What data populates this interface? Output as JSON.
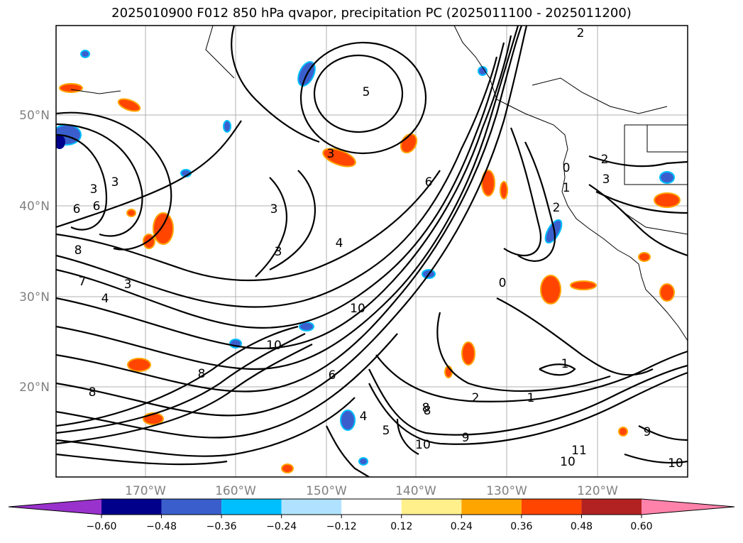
{
  "title": "2025010900 F012 850 hPa qvapor, precipitation PC (2025011100 - 2025011200)",
  "lat_labels": [
    "50°N",
    "40°N",
    "30°N",
    "20°N"
  ],
  "lon_labels": [
    "170°W",
    "160°W",
    "150°W",
    "140°W",
    "130°W",
    "120°W"
  ],
  "contour_labels": [
    "2",
    "5",
    "3",
    "3",
    "3",
    "4",
    "3",
    "3",
    "6",
    "8",
    "7",
    "4",
    "3",
    "6",
    "8",
    "10",
    "10",
    "8",
    "6",
    "8",
    "5",
    "2",
    "1",
    "1",
    "0",
    "2",
    "3",
    "0",
    "1",
    "2",
    "9",
    "8",
    "10",
    "11",
    "10",
    "9",
    "4",
    "6",
    "10"
  ],
  "colorbar": {
    "ticks": [
      "−0.60",
      "−0.48",
      "−0.36",
      "−0.24",
      "−0.12",
      "0.12",
      "0.24",
      "0.36",
      "0.48",
      "0.60"
    ],
    "under_color": "#9932cc",
    "colors": [
      "#9932cc",
      "#00008b",
      "#3a5fcd",
      "#00bfff",
      "#b0e2ff",
      "#ffffff",
      "#fff08c",
      "#ffa500",
      "#ff4500",
      "#b22222",
      "#ff82ab"
    ],
    "over_color": "#ff82ab"
  }
}
